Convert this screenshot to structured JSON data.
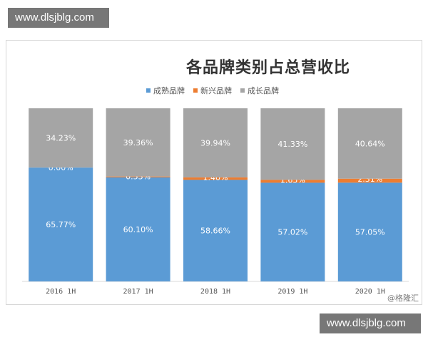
{
  "watermarks": {
    "top": "www.dlsjblg.com",
    "bottom": "www.dlsjblg.com"
  },
  "credit": "@格隆汇",
  "chart_data": {
    "type": "bar",
    "stacked": true,
    "percent": true,
    "title": "各品牌类别占总营收比",
    "xlabel": "",
    "ylabel": "",
    "ylim": [
      0,
      100
    ],
    "grid": false,
    "legend_position": "top",
    "categories": [
      "2016 1H",
      "2017 1H",
      "2018 1H",
      "2019 1H",
      "2020 1H"
    ],
    "series": [
      {
        "name": "成熟品牌",
        "color": "#5b9bd5",
        "values": [
          65.77,
          60.1,
          58.66,
          57.02,
          57.05
        ],
        "labels": [
          "65.77%",
          "60.10%",
          "58.66%",
          "57.02%",
          "57.05%"
        ]
      },
      {
        "name": "新兴品牌",
        "color": "#ed7d31",
        "values": [
          0.0,
          0.53,
          1.4,
          1.65,
          2.31
        ],
        "labels": [
          "0.00%",
          "0.53%",
          "1.40%",
          "1.65%",
          "2.31%"
        ]
      },
      {
        "name": "成长品牌",
        "color": "#a5a5a5",
        "values": [
          34.23,
          39.36,
          39.94,
          41.33,
          40.64
        ],
        "labels": [
          "34.23%",
          "39.36%",
          "39.94%",
          "41.33%",
          "40.64%"
        ]
      }
    ]
  }
}
